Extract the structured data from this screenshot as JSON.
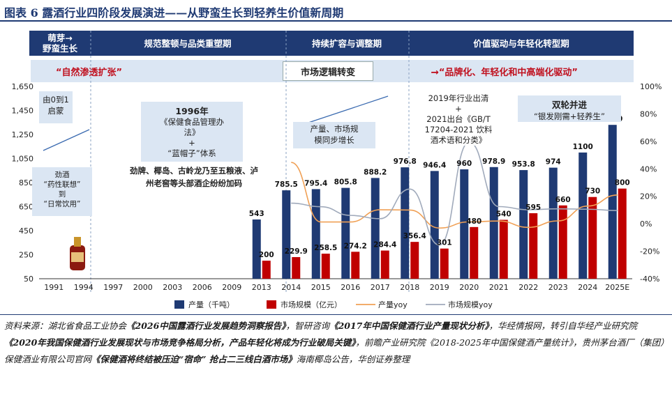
{
  "title": "图表 6   露酒行业四阶段发展演进——从野蛮生长到轻养生价值新周期",
  "phases": [
    {
      "label": "萌芽→\n野蛮生长"
    },
    {
      "label": "规范整顿与品类重塑期"
    },
    {
      "label": "持续扩容与调整期"
    },
    {
      "label": "价值驱动与年轻化转型期"
    }
  ],
  "band": {
    "left_text": "“自然渗透扩张”",
    "center_text": "市场逻辑转变",
    "right_text": "→“品牌化、年轻化和中高端化驱动”"
  },
  "notes": {
    "origin": "由0到1\n启蒙",
    "jiujiu": "劲酒\n“药性联想”\n到\n“日常饮用”",
    "y1996_title": "1996年",
    "y1996_body": "《保健食品管理办\n法》\n+\n“蓝帽子”体系",
    "brands": "劲牌、椰岛、古岭龙乃至五粮液、泸\n州老窖等头部酒企纷纷加码",
    "sync": "产量、市场规\n模同步增长",
    "clear2019": "2019年行业出清\n+\n2021出台《GB/T\n17204-2021 饮料\n酒术语和分类》",
    "dual_title": "双轮并进",
    "dual_body": "“银发刚需+轻养生”"
  },
  "chart_data": {
    "type": "bar",
    "categories": [
      "1991",
      "1994",
      "1997",
      "2000",
      "2003",
      "2006",
      "2009",
      "2013",
      "2014",
      "2015",
      "2016",
      "2017",
      "2018",
      "2019",
      "2020",
      "2021",
      "2022",
      "2023",
      "2024",
      "2025E"
    ],
    "series": [
      {
        "name": "产量（千吨）",
        "color": "#1f3a73",
        "axis": "left",
        "values": [
          null,
          null,
          null,
          null,
          null,
          null,
          null,
          543,
          785.5,
          795.4,
          805.8,
          888.2,
          976.8,
          946.4,
          960,
          978.9,
          953.8,
          974,
          1100,
          1330
        ]
      },
      {
        "name": "市场规模（亿元）",
        "color": "#c00000",
        "axis": "left",
        "values": [
          null,
          null,
          null,
          null,
          null,
          null,
          null,
          200,
          229.9,
          258.5,
          274.2,
          284.4,
          356.4,
          301,
          480,
          540,
          595,
          660,
          730,
          800
        ]
      },
      {
        "name": "产量yoy",
        "color": "#f0a055",
        "axis": "right",
        "type": "line",
        "values": [
          null,
          null,
          null,
          null,
          null,
          null,
          null,
          null,
          0.447,
          0.013,
          0.013,
          0.102,
          0.1,
          -0.031,
          0.014,
          0.02,
          -0.026,
          0.021,
          0.129,
          0.209
        ]
      },
      {
        "name": "市场规模yoy",
        "color": "#a0aabb",
        "axis": "right",
        "type": "line",
        "values": [
          null,
          null,
          null,
          null,
          null,
          null,
          null,
          null,
          0.15,
          0.124,
          0.061,
          0.037,
          0.253,
          -0.155,
          0.595,
          0.125,
          0.102,
          0.109,
          0.106,
          0.096
        ]
      }
    ],
    "data_labels": {
      "production": [
        "",
        "",
        "",
        "",
        "",
        "",
        "",
        "543",
        "785.5",
        "795.4",
        "805.8",
        "888.2",
        "976.8",
        "946.4",
        "960",
        "978.9",
        "953.8",
        "974",
        "1100",
        "1330"
      ],
      "market": [
        "",
        "",
        "",
        "",
        "",
        "",
        "",
        "200",
        "229.9",
        "258.5",
        "274.2",
        "284.4",
        "356.4",
        "301",
        "480",
        "540",
        "595",
        "660",
        "730",
        "800"
      ]
    },
    "y_left": {
      "ticks": [
        "1,650",
        "1,450",
        "1,250",
        "1,050",
        "850",
        "650",
        "450",
        "250",
        "50"
      ],
      "range": [
        50,
        1650
      ]
    },
    "y_right": {
      "ticks": [
        "100%",
        "80%",
        "60%",
        "40%",
        "20%",
        "0%",
        "-20%",
        "-40%"
      ],
      "range": [
        -0.4,
        1.0
      ]
    },
    "legend": {
      "position": "bottom"
    }
  },
  "source": {
    "p1": "资料来源：湖北省食品工业协会",
    "b1": "《2026中国露酒行业发展趋势洞察报告》",
    "p2": "，智研咨询",
    "b2": "《2017年中国保健酒行业产量现状分析》",
    "p3": "，华经情报网，转引自华经产业研究院",
    "b3": "《2020年我国保健酒行业发展现状与市场竞争格局分析，产品年轻化将成为行业破局关键》",
    "p4": "，前瞻产业研究院《2018-2025年中国保健酒产量统计》，贵州茅台酒厂（集团）保健酒业有限公司官网",
    "b4": "《保健酒将终结被压迫“宿命” 抢占二三线白酒市场》",
    "p5": "海南椰岛公告，华创证券整理"
  }
}
